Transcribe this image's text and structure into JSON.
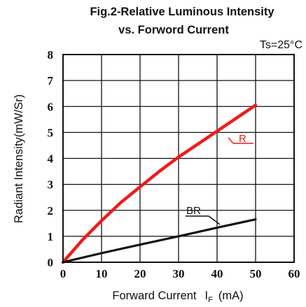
{
  "chart_data": {
    "type": "line",
    "title_line1": "Fig.2-Relative Luminous Intensity",
    "title_line2": "vs. Forword Current",
    "condition": "Ts=25°C",
    "xlabel_main": "Forward Current",
    "xlabel_symbol": "I",
    "xlabel_subscript": "F",
    "xlabel_unit": "(mA)",
    "ylabel": "Radiant Intensity(mW/Sr)",
    "xlim": [
      0,
      60
    ],
    "ylim": [
      0,
      8
    ],
    "x_ticks": [
      "0",
      "10",
      "20",
      "30",
      "40",
      "50",
      "60"
    ],
    "y_ticks": [
      "0",
      "1",
      "2",
      "3",
      "4",
      "5",
      "6",
      "7",
      "8"
    ],
    "grid": true,
    "series": [
      {
        "name": "R",
        "color": "#ee1c1c",
        "x": [
          0,
          5,
          10,
          15,
          20,
          25,
          30,
          35,
          40,
          45,
          50
        ],
        "y": [
          0,
          0.85,
          1.6,
          2.3,
          2.9,
          3.5,
          4.05,
          4.55,
          5.05,
          5.55,
          6.05
        ]
      },
      {
        "name": "BR",
        "color": "#111111",
        "x": [
          0,
          10,
          20,
          30,
          40,
          50
        ],
        "y": [
          0,
          0.35,
          0.68,
          1.0,
          1.33,
          1.65
        ]
      }
    ]
  }
}
